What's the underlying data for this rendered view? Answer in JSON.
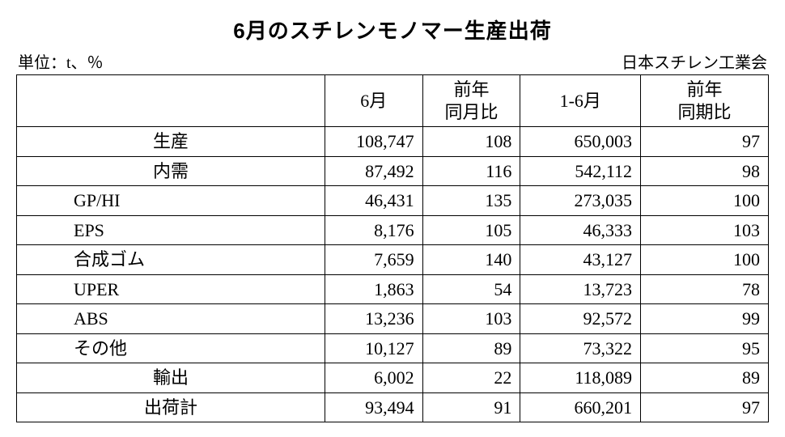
{
  "title": "6月のスチレンモノマー生産出荷",
  "unit_label": "単位：t、％",
  "source_label": "日本スチレン工業会",
  "table": {
    "columns": [
      "",
      "6月",
      "前年\n同月比",
      "1-6月",
      "前年\n同期比"
    ],
    "col_align": [
      "center",
      "right",
      "right",
      "right",
      "right"
    ],
    "rows": [
      {
        "label": "生産",
        "indent": false,
        "values": [
          "108,747",
          "108",
          "650,003",
          "97"
        ]
      },
      {
        "label": "内需",
        "indent": false,
        "values": [
          "87,492",
          "116",
          "542,112",
          "98"
        ]
      },
      {
        "label": "GP/HI",
        "indent": true,
        "values": [
          "46,431",
          "135",
          "273,035",
          "100"
        ]
      },
      {
        "label": "EPS",
        "indent": true,
        "values": [
          "8,176",
          "105",
          "46,333",
          "103"
        ]
      },
      {
        "label": "合成ゴム",
        "indent": true,
        "values": [
          "7,659",
          "140",
          "43,127",
          "100"
        ]
      },
      {
        "label": "UPER",
        "indent": true,
        "values": [
          "1,863",
          "54",
          "13,723",
          "78"
        ]
      },
      {
        "label": "ABS",
        "indent": true,
        "values": [
          "13,236",
          "103",
          "92,572",
          "99"
        ]
      },
      {
        "label": "その他",
        "indent": true,
        "values": [
          "10,127",
          "89",
          "73,322",
          "95"
        ]
      },
      {
        "label": "輸出",
        "indent": false,
        "values": [
          "6,002",
          "22",
          "118,089",
          "89"
        ]
      },
      {
        "label": "出荷計",
        "indent": false,
        "values": [
          "93,494",
          "91",
          "660,201",
          "97"
        ]
      }
    ]
  },
  "style": {
    "background_color": "#ffffff",
    "text_color": "#000000",
    "border_color": "#000000",
    "title_fontsize": 26,
    "cell_fontsize": 22,
    "meta_fontsize": 20
  }
}
